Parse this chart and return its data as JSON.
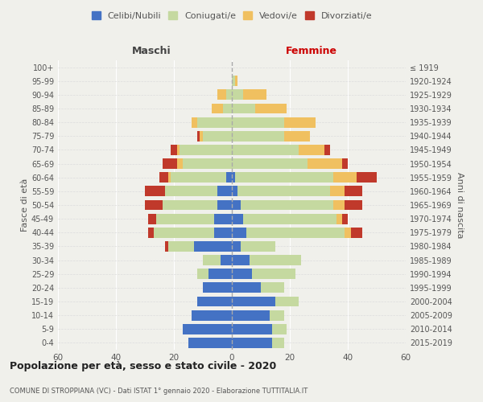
{
  "age_groups": [
    "0-4",
    "5-9",
    "10-14",
    "15-19",
    "20-24",
    "25-29",
    "30-34",
    "35-39",
    "40-44",
    "45-49",
    "50-54",
    "55-59",
    "60-64",
    "65-69",
    "70-74",
    "75-79",
    "80-84",
    "85-89",
    "90-94",
    "95-99",
    "100+"
  ],
  "birth_years": [
    "2015-2019",
    "2010-2014",
    "2005-2009",
    "2000-2004",
    "1995-1999",
    "1990-1994",
    "1985-1989",
    "1980-1984",
    "1975-1979",
    "1970-1974",
    "1965-1969",
    "1960-1964",
    "1955-1959",
    "1950-1954",
    "1945-1949",
    "1940-1944",
    "1935-1939",
    "1930-1934",
    "1925-1929",
    "1920-1924",
    "≤ 1919"
  ],
  "males": {
    "celibi": [
      15,
      17,
      14,
      12,
      10,
      8,
      4,
      13,
      6,
      6,
      5,
      5,
      2,
      0,
      0,
      0,
      0,
      0,
      0,
      0,
      0
    ],
    "coniugati": [
      0,
      0,
      0,
      0,
      0,
      4,
      6,
      9,
      21,
      20,
      19,
      18,
      19,
      17,
      18,
      10,
      12,
      3,
      2,
      0,
      0
    ],
    "vedovi": [
      0,
      0,
      0,
      0,
      0,
      0,
      0,
      0,
      0,
      0,
      0,
      0,
      1,
      2,
      1,
      1,
      2,
      4,
      3,
      0,
      0
    ],
    "divorziati": [
      0,
      0,
      0,
      0,
      0,
      0,
      0,
      1,
      2,
      3,
      6,
      7,
      3,
      5,
      2,
      1,
      0,
      0,
      0,
      0,
      0
    ]
  },
  "females": {
    "nubili": [
      14,
      14,
      13,
      15,
      10,
      7,
      6,
      3,
      5,
      4,
      3,
      2,
      1,
      0,
      0,
      0,
      0,
      0,
      0,
      0,
      0
    ],
    "coniugate": [
      4,
      5,
      5,
      8,
      8,
      15,
      18,
      12,
      34,
      32,
      32,
      32,
      34,
      26,
      23,
      18,
      18,
      8,
      4,
      1,
      0
    ],
    "vedove": [
      0,
      0,
      0,
      0,
      0,
      0,
      0,
      0,
      2,
      2,
      4,
      5,
      8,
      12,
      9,
      9,
      11,
      11,
      8,
      1,
      0
    ],
    "divorziate": [
      0,
      0,
      0,
      0,
      0,
      0,
      0,
      0,
      4,
      2,
      6,
      6,
      7,
      2,
      2,
      0,
      0,
      0,
      0,
      0,
      0
    ]
  },
  "colors": {
    "celibi": "#4472c4",
    "coniugati": "#c5d9a0",
    "vedovi": "#f0c060",
    "divorziati": "#c0392b"
  },
  "title": "Popolazione per età, sesso e stato civile - 2020",
  "subtitle": "COMUNE DI STROPPIANA (VC) - Dati ISTAT 1° gennaio 2020 - Elaborazione TUTTITALIA.IT",
  "xlabel_left": "Maschi",
  "xlabel_right": "Femmine",
  "ylabel_left": "Fasce di età",
  "ylabel_right": "Anni di nascita",
  "xlim": 60,
  "legend_labels": [
    "Celibi/Nubili",
    "Coniugati/e",
    "Vedovi/e",
    "Divorziati/e"
  ],
  "background_color": "#f0f0eb"
}
